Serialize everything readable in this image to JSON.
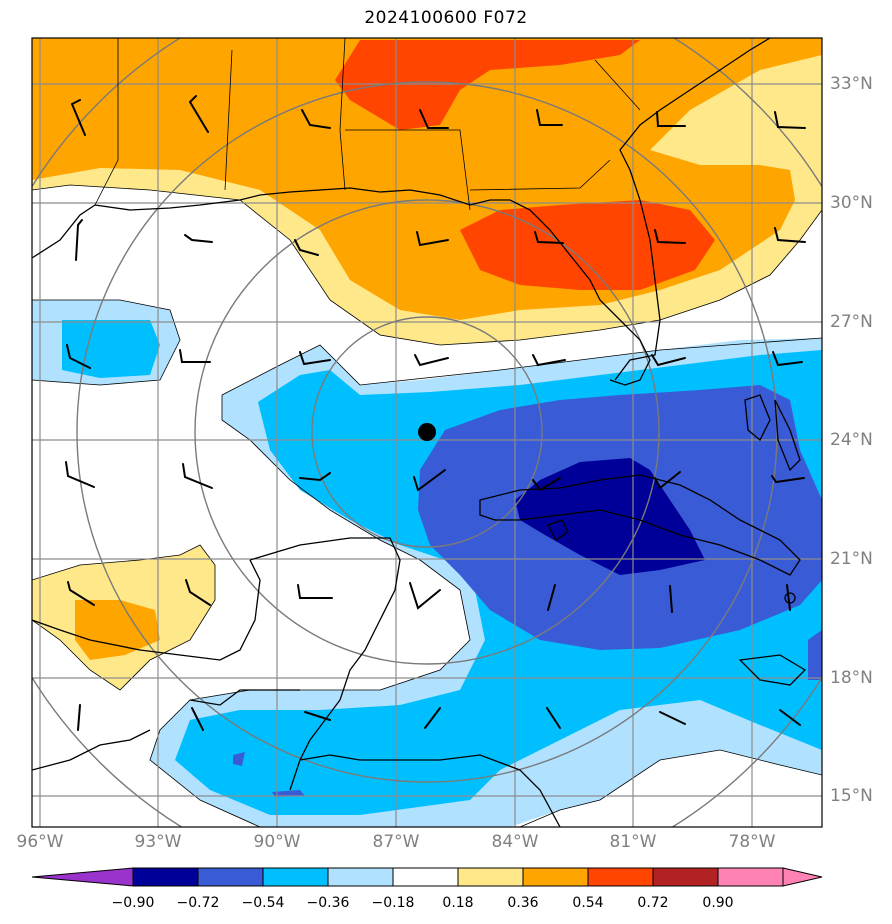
{
  "title": "2024100600 F072",
  "lat_labels": [
    "33°N",
    "30°N",
    "27°N",
    "24°N",
    "21°N",
    "18°N",
    "15°N"
  ],
  "lon_labels": [
    "96°W",
    "93°W",
    "90°W",
    "87°W",
    "84°W",
    "81°W",
    "78°W"
  ],
  "colorbar": {
    "ticks": [
      "−0.90",
      "−0.72",
      "−0.54",
      "−0.36",
      "−0.18",
      "0.18",
      "0.36",
      "0.54",
      "0.72",
      "0.90"
    ],
    "colors": [
      "#9933cc",
      "#000099",
      "#3a5bd6",
      "#00bfff",
      "#b0e2ff",
      "#ffffff",
      "#ffe88a",
      "#ffa500",
      "#ff4500",
      "#b22222",
      "#ff82b4"
    ]
  },
  "storm_center": {
    "lat": 24.2,
    "lon": -86.1
  }
}
